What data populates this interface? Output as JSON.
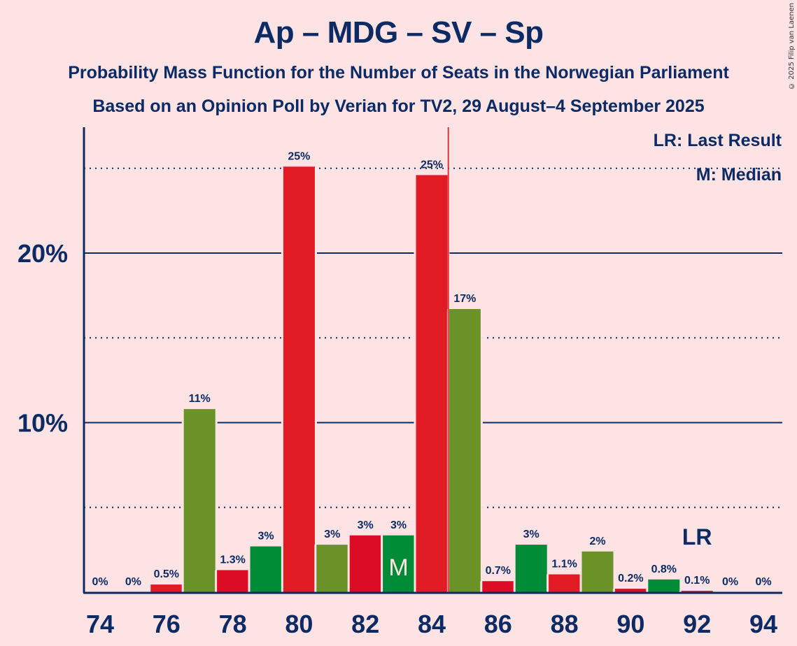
{
  "chart_data": {
    "type": "bar",
    "title": "Ap – MDG – SV – Sp",
    "subtitle": "Probability Mass Function for the Number of Seats in the Norwegian Parliament",
    "subtitle2": "Based on an Opinion Poll by Verian for TV2, 29 August–4 September 2025",
    "xlabel": "",
    "ylabel": "",
    "ylim": [
      0,
      27
    ],
    "x": [
      74,
      75,
      76,
      77,
      78,
      79,
      80,
      81,
      82,
      83,
      84,
      85,
      86,
      87,
      88,
      89,
      90,
      91,
      92,
      93,
      94
    ],
    "values": [
      0,
      0,
      0.45,
      10.8,
      1.3,
      2.7,
      25.1,
      2.8,
      3.35,
      3.35,
      24.6,
      16.7,
      0.65,
      2.8,
      1.05,
      2.4,
      0.2,
      0.75,
      0.08,
      0,
      0
    ],
    "data_labels": [
      "0%",
      "0%",
      "0.5%",
      "11%",
      "1.3%",
      "3%",
      "25%",
      "3%",
      "3%",
      "3%",
      "25%",
      "17%",
      "0.7%",
      "3%",
      "1.1%",
      "2%",
      "0.2%",
      "0.8%",
      "0.1%",
      "0%",
      "0%"
    ],
    "bar_colors": [
      "#e01b24",
      "#6a9226",
      "#e01b24",
      "#6a9226",
      "#dc0c24",
      "#008c37",
      "#e01b24",
      "#6a9226",
      "#dc0c24",
      "#008c37",
      "#e01b24",
      "#6a9226",
      "#dc0c24",
      "#008c37",
      "#e01b24",
      "#6a9226",
      "#dc0c24",
      "#008c37",
      "#e01b24",
      "#6a9226",
      "#dc0c24"
    ],
    "x_ticks": [
      74,
      76,
      78,
      80,
      82,
      84,
      86,
      88,
      90,
      92,
      94
    ],
    "x_tick_labels": [
      "74",
      "76",
      "78",
      "80",
      "82",
      "84",
      "86",
      "88",
      "90",
      "92",
      "94"
    ],
    "y_ticks_major": [
      10,
      20
    ],
    "y_tick_labels": [
      "10%",
      "20%"
    ],
    "y_ticks_minor": [
      5,
      15,
      25
    ],
    "grid": true,
    "median_seat": 83,
    "median_marker": "M",
    "last_result_seat": 92,
    "last_result_marker": "LR",
    "majority_line_seat": 84.5,
    "legend": {
      "position": "top-right",
      "entries": [
        "LR: Last Result",
        "M: Median"
      ]
    },
    "colors": {
      "text": "#0c2a64",
      "background": "#fde3e4",
      "majority_line": "#e8303a"
    }
  },
  "copyright": "© 2025 Filip van Laenen"
}
